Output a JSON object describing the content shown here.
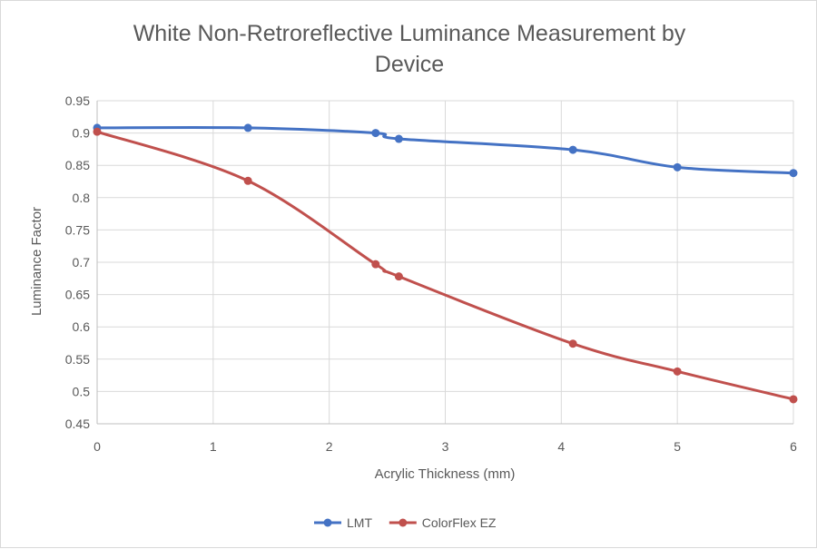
{
  "chart_data": {
    "type": "line",
    "title_lines": [
      "White Non-Retroreflective Luminance Measurement by",
      "Device"
    ],
    "xlabel": "Acrylic Thickness (mm)",
    "ylabel": "Luminance Factor",
    "xlim": [
      0,
      6
    ],
    "ylim": [
      0.45,
      0.95
    ],
    "x_ticks": [
      "0",
      "1",
      "2",
      "3",
      "4",
      "5",
      "6"
    ],
    "y_ticks": [
      "0.45",
      "0.5",
      "0.55",
      "0.6",
      "0.65",
      "0.7",
      "0.75",
      "0.8",
      "0.85",
      "0.9",
      "0.95"
    ],
    "grid": "vertical and horizontal",
    "legend_position": "bottom",
    "smoothed": true,
    "series": [
      {
        "name": "LMT",
        "color": "#4472c4",
        "x": [
          0,
          1.3,
          2.4,
          2.6,
          4.1,
          5,
          6
        ],
        "y": [
          0.908,
          0.908,
          0.9,
          0.891,
          0.874,
          0.847,
          0.838
        ]
      },
      {
        "name": "ColorFlex EZ",
        "color": "#c0504d",
        "x": [
          0,
          1.3,
          2.4,
          2.6,
          4.1,
          5,
          6
        ],
        "y": [
          0.902,
          0.826,
          0.697,
          0.678,
          0.574,
          0.531,
          0.488
        ]
      }
    ]
  }
}
